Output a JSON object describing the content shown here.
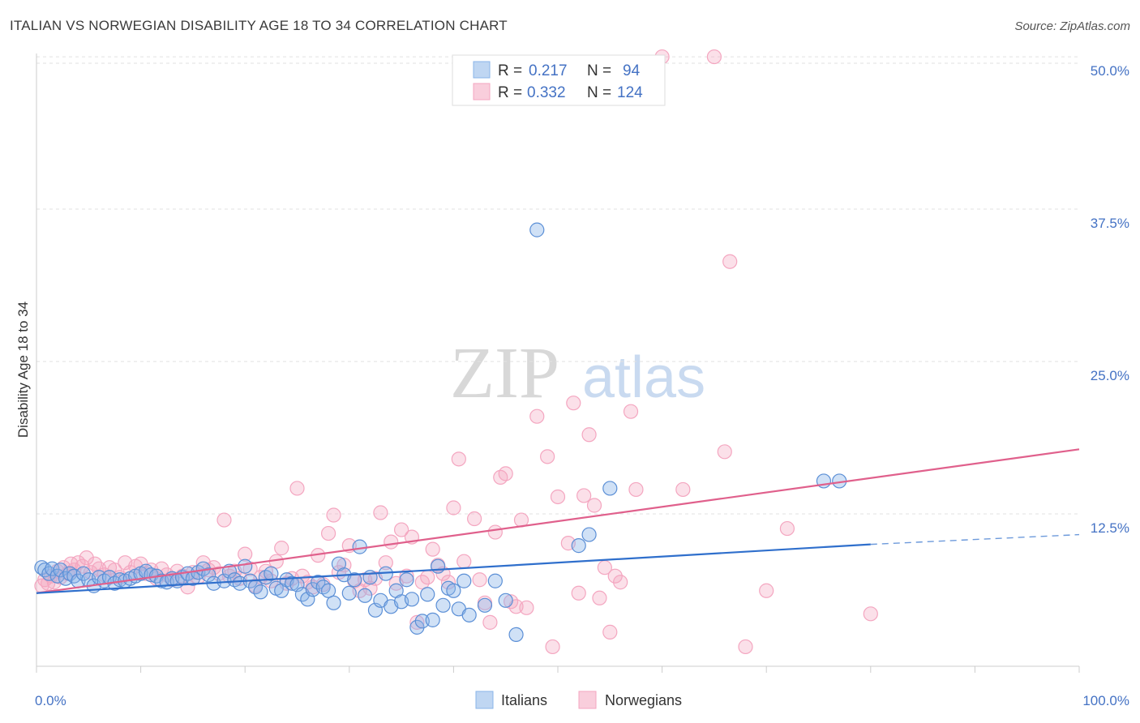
{
  "title": "ITALIAN VS NORWEGIAN DISABILITY AGE 18 TO 34 CORRELATION CHART",
  "source": "Source: ZipAtlas.com",
  "watermark": {
    "zip": "ZIP",
    "atlas": "atlas"
  },
  "chart_data": {
    "type": "scatter",
    "xlabel": "",
    "ylabel": "Disability Age 18 to 34",
    "xlim": [
      0,
      100
    ],
    "ylim": [
      0,
      52
    ],
    "x_tick_labels": [
      "0.0%",
      "100.0%"
    ],
    "y_ticks": [
      12.5,
      25.0,
      37.5,
      50.0
    ],
    "y_tick_labels": [
      "12.5%",
      "25.0%",
      "37.5%",
      "50.0%"
    ],
    "grid": true,
    "legend_position": "top-center",
    "series": [
      {
        "name": "Italians",
        "color": "#8ab4e8",
        "line_color": "#2f6fcc",
        "R": "0.217",
        "N": "94",
        "trend": {
          "x0": 0,
          "y0": 6.0,
          "x1": 80,
          "y1": 10.0,
          "dash_to": 100,
          "dash_y": 10.8
        },
        "points": [
          [
            0.5,
            8.1
          ],
          [
            0.8,
            7.9
          ],
          [
            1.2,
            7.6
          ],
          [
            1.5,
            8.0
          ],
          [
            2.0,
            7.4
          ],
          [
            2.3,
            7.9
          ],
          [
            2.8,
            7.2
          ],
          [
            3.2,
            7.6
          ],
          [
            3.6,
            7.4
          ],
          [
            4.0,
            7.0
          ],
          [
            4.5,
            7.6
          ],
          [
            5.0,
            7.1
          ],
          [
            5.5,
            6.6
          ],
          [
            6.0,
            7.3
          ],
          [
            6.5,
            7.0
          ],
          [
            7.0,
            7.3
          ],
          [
            7.5,
            6.8
          ],
          [
            8.0,
            7.1
          ],
          [
            8.5,
            7.0
          ],
          [
            9.0,
            7.2
          ],
          [
            9.5,
            7.4
          ],
          [
            10.0,
            7.6
          ],
          [
            10.5,
            7.8
          ],
          [
            11.0,
            7.5
          ],
          [
            11.5,
            7.4
          ],
          [
            12.0,
            7.0
          ],
          [
            12.5,
            6.9
          ],
          [
            13.0,
            7.2
          ],
          [
            13.5,
            7.0
          ],
          [
            14.0,
            7.3
          ],
          [
            14.5,
            7.6
          ],
          [
            15.0,
            7.2
          ],
          [
            15.5,
            7.7
          ],
          [
            16.0,
            8.0
          ],
          [
            16.5,
            7.5
          ],
          [
            17.0,
            6.8
          ],
          [
            18.0,
            7.0
          ],
          [
            18.5,
            7.8
          ],
          [
            19.0,
            7.1
          ],
          [
            19.5,
            6.8
          ],
          [
            20.0,
            8.2
          ],
          [
            20.5,
            7.0
          ],
          [
            21.0,
            6.5
          ],
          [
            21.5,
            6.1
          ],
          [
            22.0,
            7.3
          ],
          [
            22.5,
            7.6
          ],
          [
            23.0,
            6.4
          ],
          [
            23.5,
            6.2
          ],
          [
            24.0,
            7.1
          ],
          [
            24.5,
            6.8
          ],
          [
            25.0,
            6.7
          ],
          [
            25.5,
            5.9
          ],
          [
            26.0,
            5.5
          ],
          [
            26.5,
            6.3
          ],
          [
            27.0,
            6.9
          ],
          [
            27.5,
            6.5
          ],
          [
            28.0,
            6.2
          ],
          [
            28.5,
            5.2
          ],
          [
            29.0,
            8.4
          ],
          [
            29.5,
            7.5
          ],
          [
            30.0,
            6.0
          ],
          [
            30.5,
            7.1
          ],
          [
            31.0,
            9.8
          ],
          [
            31.5,
            5.8
          ],
          [
            32.0,
            7.3
          ],
          [
            32.5,
            4.6
          ],
          [
            33.0,
            5.4
          ],
          [
            33.5,
            7.6
          ],
          [
            34.0,
            4.9
          ],
          [
            34.5,
            6.2
          ],
          [
            35.0,
            5.3
          ],
          [
            35.5,
            7.1
          ],
          [
            36.0,
            5.5
          ],
          [
            36.5,
            3.2
          ],
          [
            37.0,
            3.7
          ],
          [
            37.5,
            5.9
          ],
          [
            38.0,
            3.8
          ],
          [
            38.5,
            8.2
          ],
          [
            39.0,
            5.0
          ],
          [
            39.5,
            6.4
          ],
          [
            40.0,
            6.2
          ],
          [
            40.5,
            4.7
          ],
          [
            41.0,
            7.0
          ],
          [
            41.5,
            4.2
          ],
          [
            43.0,
            5.0
          ],
          [
            44.0,
            7.0
          ],
          [
            45.0,
            5.4
          ],
          [
            46.0,
            2.6
          ],
          [
            48.0,
            35.8
          ],
          [
            52.0,
            9.9
          ],
          [
            53.0,
            10.8
          ],
          [
            55.0,
            14.6
          ],
          [
            75.5,
            15.2
          ],
          [
            77.0,
            15.2
          ]
        ]
      },
      {
        "name": "Norwegians",
        "color": "#f4a6c0",
        "line_color": "#e0608c",
        "R": "0.332",
        "N": "124",
        "trend": {
          "x0": 0,
          "y0": 6.0,
          "x1": 100,
          "y1": 17.8
        },
        "points": [
          [
            0.5,
            6.6
          ],
          [
            0.8,
            7.1
          ],
          [
            1.1,
            6.8
          ],
          [
            1.4,
            7.4
          ],
          [
            1.7,
            6.9
          ],
          [
            2.0,
            7.8
          ],
          [
            2.3,
            7.3
          ],
          [
            2.6,
            8.1
          ],
          [
            3.0,
            7.6
          ],
          [
            3.3,
            8.4
          ],
          [
            3.6,
            7.9
          ],
          [
            4.0,
            8.5
          ],
          [
            4.4,
            8.2
          ],
          [
            4.8,
            8.9
          ],
          [
            5.2,
            7.7
          ],
          [
            5.6,
            8.4
          ],
          [
            6.0,
            8.0
          ],
          [
            6.5,
            7.5
          ],
          [
            7.0,
            8.1
          ],
          [
            7.5,
            7.9
          ],
          [
            8.0,
            7.3
          ],
          [
            8.5,
            8.5
          ],
          [
            9.0,
            7.7
          ],
          [
            9.5,
            8.2
          ],
          [
            10.0,
            8.4
          ],
          [
            10.5,
            7.6
          ],
          [
            11.0,
            7.9
          ],
          [
            11.5,
            7.2
          ],
          [
            12.0,
            8.0
          ],
          [
            12.5,
            7.5
          ],
          [
            13.0,
            7.1
          ],
          [
            13.5,
            7.8
          ],
          [
            14.0,
            7.4
          ],
          [
            14.5,
            6.5
          ],
          [
            15.0,
            7.7
          ],
          [
            15.5,
            7.3
          ],
          [
            16.0,
            8.5
          ],
          [
            16.5,
            7.9
          ],
          [
            17.0,
            8.1
          ],
          [
            17.5,
            7.6
          ],
          [
            18.0,
            12.0
          ],
          [
            18.5,
            7.4
          ],
          [
            19.0,
            7.8
          ],
          [
            19.5,
            7.2
          ],
          [
            20.0,
            9.2
          ],
          [
            20.5,
            8.0
          ],
          [
            21.0,
            6.6
          ],
          [
            21.5,
            7.3
          ],
          [
            22.0,
            7.8
          ],
          [
            22.5,
            7.0
          ],
          [
            23.0,
            8.6
          ],
          [
            23.5,
            9.7
          ],
          [
            24.0,
            6.8
          ],
          [
            24.5,
            7.2
          ],
          [
            25.0,
            14.6
          ],
          [
            25.5,
            7.4
          ],
          [
            26.0,
            6.9
          ],
          [
            26.5,
            6.5
          ],
          [
            27.0,
            9.1
          ],
          [
            27.5,
            6.7
          ],
          [
            28.0,
            10.9
          ],
          [
            28.5,
            12.4
          ],
          [
            29.0,
            7.7
          ],
          [
            29.5,
            8.3
          ],
          [
            30.0,
            9.9
          ],
          [
            30.5,
            7.0
          ],
          [
            31.0,
            6.2
          ],
          [
            31.5,
            7.1
          ],
          [
            32.0,
            6.4
          ],
          [
            32.5,
            7.2
          ],
          [
            33.0,
            12.6
          ],
          [
            33.5,
            8.5
          ],
          [
            34.0,
            10.2
          ],
          [
            34.5,
            6.8
          ],
          [
            35.0,
            11.2
          ],
          [
            35.5,
            7.4
          ],
          [
            36.0,
            10.6
          ],
          [
            36.5,
            3.6
          ],
          [
            37.0,
            6.9
          ],
          [
            37.5,
            7.3
          ],
          [
            38.0,
            9.6
          ],
          [
            38.5,
            8.3
          ],
          [
            39.0,
            7.6
          ],
          [
            39.5,
            6.9
          ],
          [
            40.0,
            13.0
          ],
          [
            40.5,
            17.0
          ],
          [
            41.0,
            8.6
          ],
          [
            42.0,
            12.1
          ],
          [
            42.5,
            7.1
          ],
          [
            43.0,
            5.2
          ],
          [
            43.5,
            3.6
          ],
          [
            44.0,
            11.0
          ],
          [
            44.5,
            15.5
          ],
          [
            45.0,
            15.8
          ],
          [
            45.5,
            5.3
          ],
          [
            46.0,
            4.9
          ],
          [
            46.5,
            12.0
          ],
          [
            47.0,
            4.8
          ],
          [
            48.0,
            20.5
          ],
          [
            49.0,
            17.2
          ],
          [
            49.5,
            1.6
          ],
          [
            50.0,
            13.9
          ],
          [
            51.0,
            10.1
          ],
          [
            51.5,
            21.6
          ],
          [
            52.0,
            6.0
          ],
          [
            52.5,
            14.0
          ],
          [
            53.0,
            19.0
          ],
          [
            53.5,
            13.2
          ],
          [
            54.0,
            5.6
          ],
          [
            54.5,
            8.1
          ],
          [
            55.0,
            2.8
          ],
          [
            55.5,
            7.4
          ],
          [
            56.0,
            6.9
          ],
          [
            57.0,
            20.9
          ],
          [
            57.5,
            14.5
          ],
          [
            60.0,
            50.0
          ],
          [
            62.0,
            14.5
          ],
          [
            65.0,
            50.0
          ],
          [
            66.0,
            17.6
          ],
          [
            66.5,
            33.2
          ],
          [
            68.0,
            1.6
          ],
          [
            70.0,
            6.2
          ],
          [
            72.0,
            11.3
          ],
          [
            80.0,
            4.3
          ]
        ]
      }
    ]
  }
}
